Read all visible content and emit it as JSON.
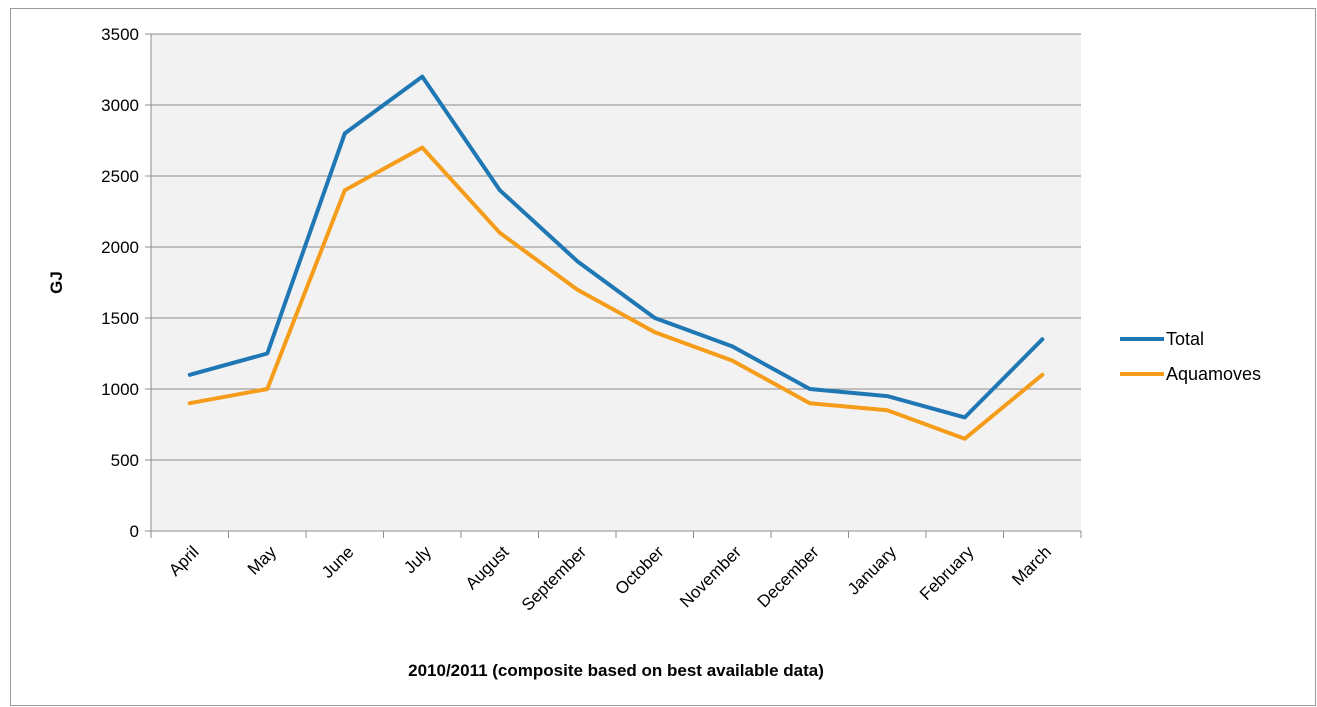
{
  "chart_data": {
    "type": "line",
    "title": "",
    "xlabel": "2010/2011 (composite based on best available data)",
    "ylabel": "GJ",
    "categories": [
      "April",
      "May",
      "June",
      "July",
      "August",
      "September",
      "October",
      "November",
      "December",
      "January",
      "February",
      "March"
    ],
    "ylim": [
      0,
      3500
    ],
    "yticks": [
      0,
      500,
      1000,
      1500,
      2000,
      2500,
      3000,
      3500
    ],
    "grid": "horizontal",
    "legend_position": "right",
    "series": [
      {
        "name": "Total",
        "color": "#1f77b4",
        "values": [
          1100,
          1250,
          2800,
          3200,
          2400,
          1900,
          1500,
          1300,
          1000,
          950,
          800,
          1350
        ]
      },
      {
        "name": "Aquamoves",
        "color": "#f59d1a",
        "values": [
          900,
          1000,
          2400,
          2700,
          2100,
          1700,
          1400,
          1200,
          900,
          850,
          650,
          1100
        ]
      }
    ]
  }
}
